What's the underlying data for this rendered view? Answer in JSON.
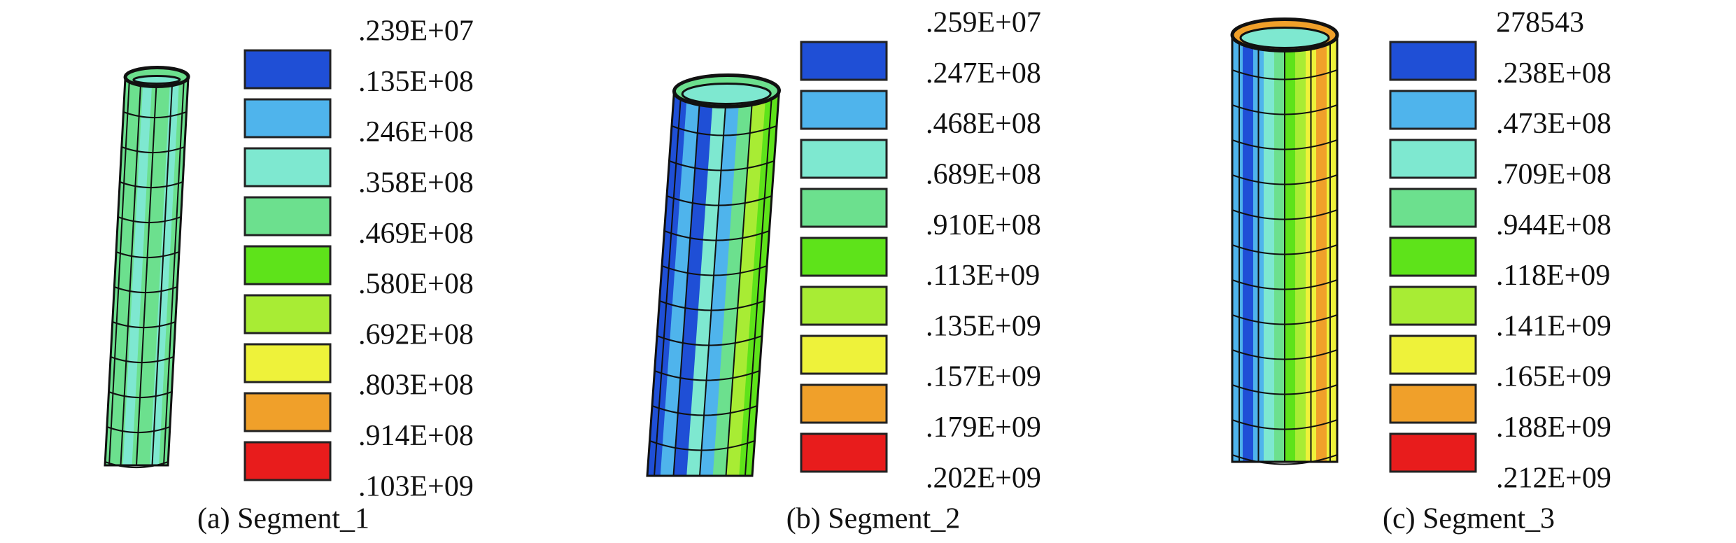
{
  "colors": [
    "#1f4fd6",
    "#4fb4ec",
    "#7ee8d0",
    "#6ce08e",
    "#5ee31a",
    "#a8ec34",
    "#eef23a",
    "#f0a02a",
    "#e81c1c"
  ],
  "panels": [
    {
      "caption": "(a) Segment_1",
      "legend_labels": [
        ".239E+07",
        ".135E+08",
        ".246E+08",
        ".358E+08",
        ".469E+08",
        ".580E+08",
        ".692E+08",
        ".803E+08",
        ".914E+08",
        ".103E+09"
      ]
    },
    {
      "caption": "(b) Segment_2",
      "legend_labels": [
        ".259E+07",
        ".247E+08",
        ".468E+08",
        ".689E+08",
        ".910E+08",
        ".113E+09",
        ".135E+09",
        ".157E+09",
        ".179E+09",
        ".202E+09"
      ]
    },
    {
      "caption": "(c) Segment_3",
      "legend_labels": [
        "278543",
        ".238E+08",
        ".473E+08",
        ".709E+08",
        ".944E+08",
        ".118E+09",
        ".141E+09",
        ".165E+09",
        ".188E+09",
        ".212E+09"
      ]
    }
  ]
}
